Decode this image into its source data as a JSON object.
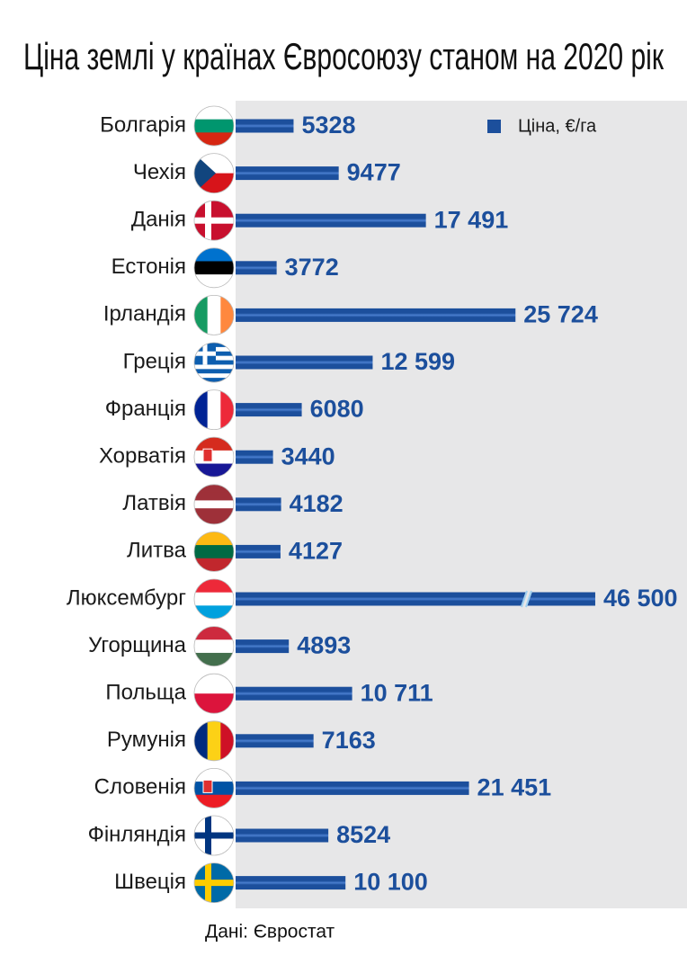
{
  "chart_data": {
    "type": "bar",
    "orientation": "horizontal",
    "title": "Ціна землі у країнах Євросоюзу станом на 2020 рік",
    "categories": [
      "Болгарія",
      "Чехія",
      "Данія",
      "Естонія",
      "Ірландія",
      "Греція",
      "Франція",
      "Хорватія",
      "Латвія",
      "Литва",
      "Люксембург",
      "Угорщина",
      "Польща",
      "Румунія",
      "Словенія",
      "Фінляндія",
      "Швеція"
    ],
    "series": [
      {
        "name": "Ціна, €/га",
        "color": "#1c4f9c",
        "values": [
          5328,
          9477,
          17491,
          3772,
          25724,
          12599,
          6080,
          3440,
          4182,
          4127,
          46500,
          4893,
          10711,
          7163,
          21451,
          8524,
          10100
        ],
        "value_labels": [
          "5328",
          "9477",
          "17 491",
          "3772",
          "25 724",
          "12 599",
          "6080",
          "3440",
          "4182",
          "4127",
          "46 500",
          "4893",
          "10 711",
          "7163",
          "21 451",
          "8524",
          "10 100"
        ]
      }
    ],
    "legend": "upper right",
    "axis_break": true,
    "source": "Дані: Євростат"
  }
}
